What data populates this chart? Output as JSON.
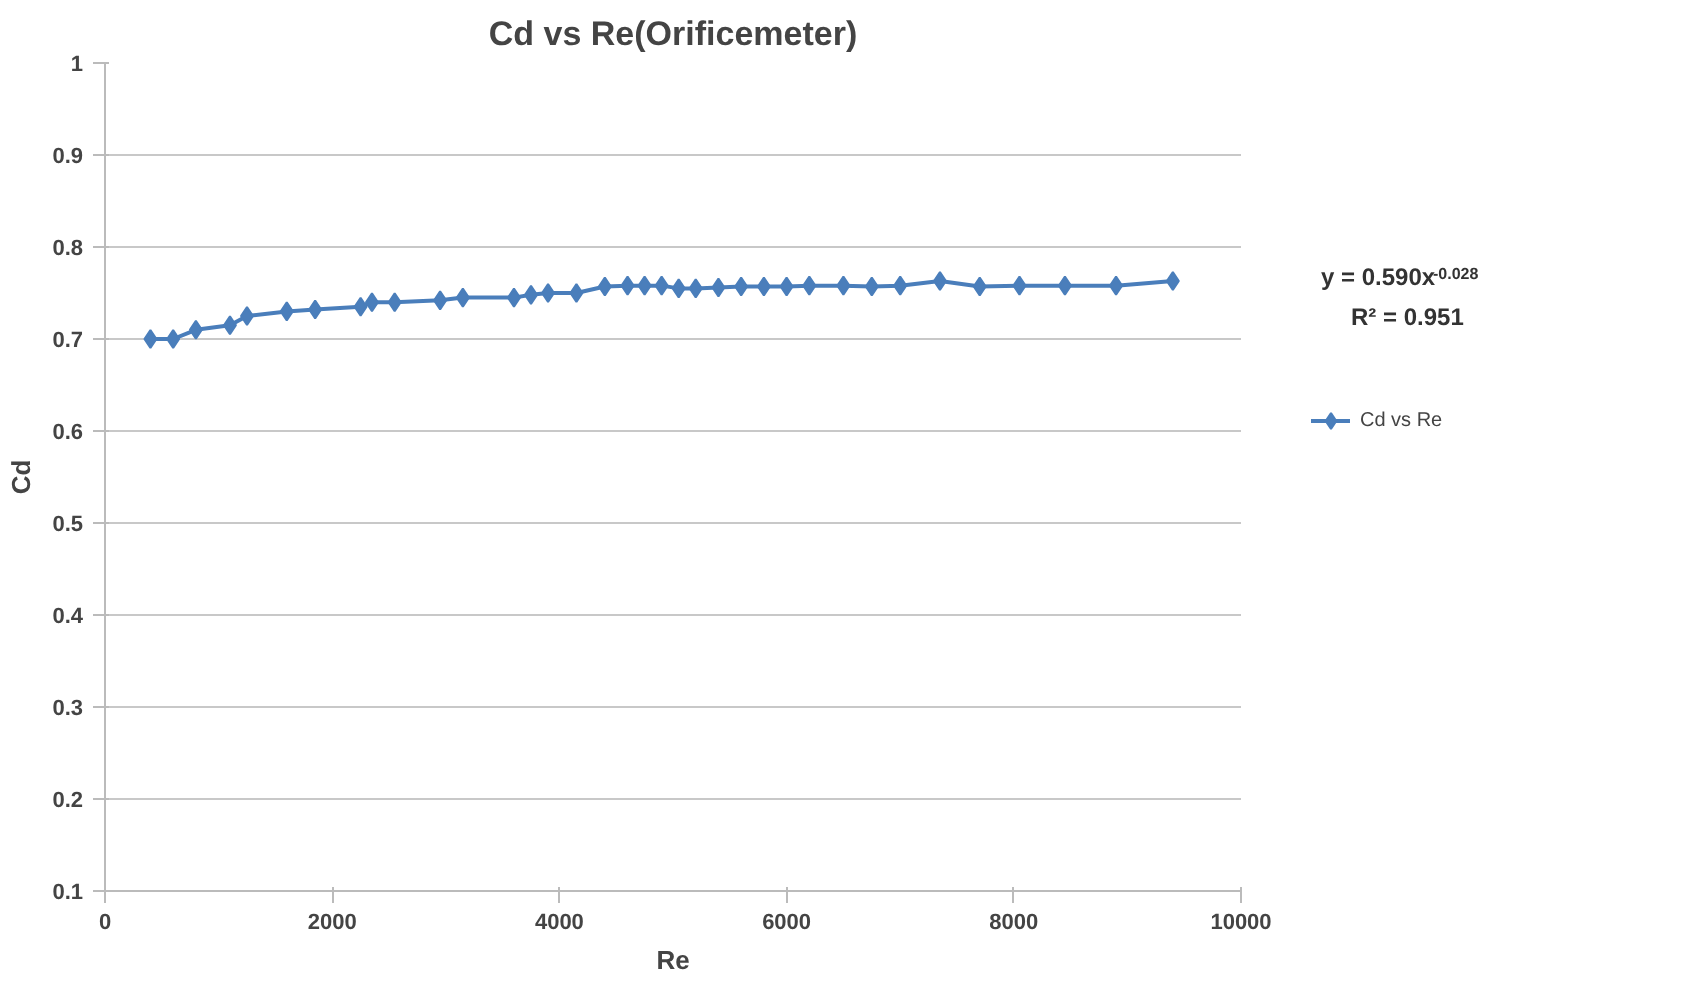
{
  "chart_data": {
    "type": "line",
    "title": "Cd vs Re(Orificemeter)",
    "xlabel": "Re",
    "ylabel": "Cd",
    "xlim": [
      0,
      10000
    ],
    "xticks": [
      0,
      2000,
      4000,
      6000,
      8000,
      10000
    ],
    "ylim": [
      0.1,
      1
    ],
    "yticks": [
      0.1,
      0.2,
      0.3,
      0.4,
      0.5,
      0.6,
      0.7,
      0.8,
      0.9,
      1
    ],
    "grid": "y",
    "legend": "right",
    "marker": "diamond",
    "line_style": "solid",
    "annotations": [
      "y = 0.590x$^{-0.028}$",
      "R² = 0.951"
    ],
    "series": [
      {
        "name": "Cd vs Re",
        "color": "#4a7ebb",
        "x": [
          400,
          600,
          800,
          1100,
          1250,
          1600,
          1850,
          2250,
          2350,
          2550,
          2950,
          3150,
          3600,
          3750,
          3900,
          4150,
          4400,
          4600,
          4750,
          4900,
          5050,
          5200,
          5400,
          5600,
          5800,
          6000,
          6200,
          6500,
          6750,
          7000,
          7350,
          7700,
          8050,
          8450,
          8900,
          9400
        ],
        "values": [
          0.7,
          0.7,
          0.71,
          0.715,
          0.725,
          0.73,
          0.732,
          0.735,
          0.74,
          0.74,
          0.742,
          0.745,
          0.745,
          0.748,
          0.75,
          0.75,
          0.757,
          0.758,
          0.758,
          0.758,
          0.755,
          0.755,
          0.756,
          0.757,
          0.757,
          0.757,
          0.758,
          0.758,
          0.757,
          0.758,
          0.763,
          0.757,
          0.758,
          0.758,
          0.758,
          0.763
        ]
      }
    ]
  }
}
